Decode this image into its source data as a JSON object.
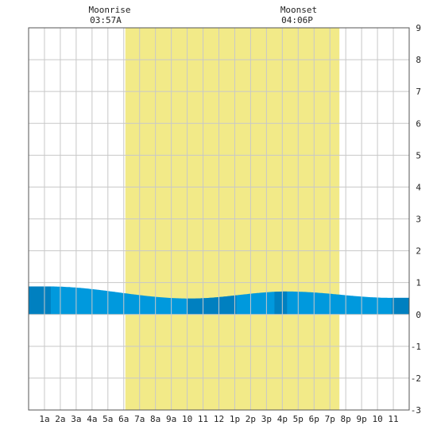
{
  "moon": {
    "rise_label": "Moonrise",
    "rise_time": "03:57A",
    "set_label": "Moonset",
    "set_time": "04:06P"
  },
  "colors": {
    "daylight": "#f2ea88",
    "tide_light": "#0099dd",
    "tide_dark": "#0080c0",
    "grid": "#c8c8c8",
    "border": "#555555"
  },
  "chart_data": {
    "type": "area",
    "xlabel": "",
    "ylabel": "",
    "xlim": [
      0,
      24
    ],
    "ylim": [
      -3,
      9
    ],
    "x_ticks": [
      {
        "x": 1,
        "label": "1a"
      },
      {
        "x": 2,
        "label": "2a"
      },
      {
        "x": 3,
        "label": "3a"
      },
      {
        "x": 4,
        "label": "4a"
      },
      {
        "x": 5,
        "label": "5a"
      },
      {
        "x": 6,
        "label": "6a"
      },
      {
        "x": 7,
        "label": "7a"
      },
      {
        "x": 8,
        "label": "8a"
      },
      {
        "x": 9,
        "label": "9a"
      },
      {
        "x": 10,
        "label": "10"
      },
      {
        "x": 11,
        "label": "11"
      },
      {
        "x": 12,
        "label": "12"
      },
      {
        "x": 13,
        "label": "1p"
      },
      {
        "x": 14,
        "label": "2p"
      },
      {
        "x": 15,
        "label": "3p"
      },
      {
        "x": 16,
        "label": "4p"
      },
      {
        "x": 17,
        "label": "5p"
      },
      {
        "x": 18,
        "label": "6p"
      },
      {
        "x": 19,
        "label": "7p"
      },
      {
        "x": 20,
        "label": "8p"
      },
      {
        "x": 21,
        "label": "9p"
      },
      {
        "x": 22,
        "label": "10"
      },
      {
        "x": 23,
        "label": "11"
      }
    ],
    "y_ticks": [
      {
        "y": 9,
        "label": "9"
      },
      {
        "y": 8,
        "label": "8"
      },
      {
        "y": 7,
        "label": "7"
      },
      {
        "y": 6,
        "label": "6"
      },
      {
        "y": 5,
        "label": "5"
      },
      {
        "y": 4,
        "label": "4"
      },
      {
        "y": 3,
        "label": "3"
      },
      {
        "y": 2,
        "label": "2"
      },
      {
        "y": 1,
        "label": "1"
      },
      {
        "y": 0,
        "label": "0"
      },
      {
        "y": -1,
        "label": "-1"
      },
      {
        "y": -2,
        "label": "-2"
      },
      {
        "y": -3,
        "label": "-3"
      }
    ],
    "daylight": {
      "start": 6.1,
      "end": 19.6
    },
    "moonrise_x": 3.95,
    "moonset_x": 16.1,
    "tide_extremes": [
      {
        "x": 1.2,
        "y": 0.88
      },
      {
        "x": 10.2,
        "y": 0.5
      },
      {
        "x": 16.3,
        "y": 0.72
      },
      {
        "x": 23.0,
        "y": 0.52
      }
    ],
    "tide_dark_bands": [
      [
        0,
        1.4
      ],
      [
        10,
        13.1
      ],
      [
        15.5,
        16.3
      ],
      [
        22.9,
        24
      ]
    ],
    "grid": true
  }
}
